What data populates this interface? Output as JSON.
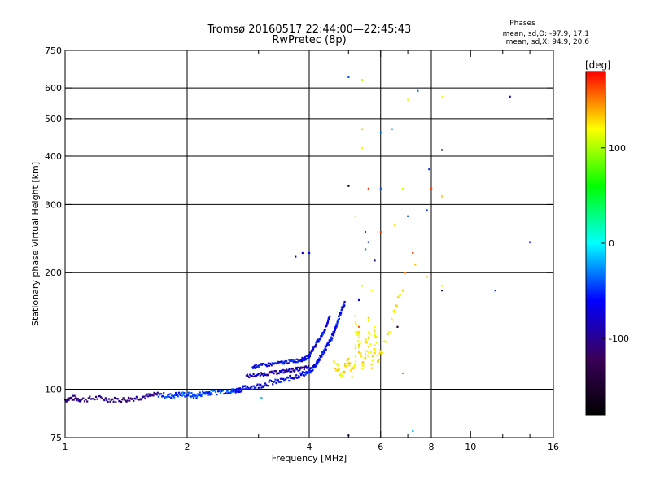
{
  "chart_data": {
    "type": "scatter",
    "title": "Tromsø 20160517 22:44:00—22:45:43",
    "subtitle": "RwPretec (8p)",
    "xlabel": "Frequency [MHz]",
    "ylabel": "Stationary phase Virtual Height [km]",
    "xscale": "log",
    "yscale": "log",
    "xlim": [
      1,
      16
    ],
    "ylim": [
      75,
      750
    ],
    "x_ticks": [
      1,
      2,
      4,
      6,
      8,
      10,
      16
    ],
    "y_ticks": [
      75,
      100,
      200,
      300,
      400,
      500,
      600,
      750
    ],
    "x_gridlines": [
      2,
      4,
      6,
      8
    ],
    "y_gridlines": [
      100,
      200,
      300,
      400,
      500,
      600
    ],
    "phase_stats": {
      "heading": "Phases",
      "line_o": "mean, sd,O: -97.9, 17.1",
      "line_x": "mean, sd,X:  94.9, 20.6"
    },
    "colorbar": {
      "label": "[deg]",
      "range": [
        -180,
        180
      ],
      "ticks": [
        100,
        0,
        -100
      ],
      "colors": [
        "#000000",
        "#3a005a",
        "#0000ff",
        "#00ffff",
        "#00ff00",
        "#ffff00",
        "#ff0000"
      ]
    },
    "o_trace": [
      [
        1.0,
        94
      ],
      [
        1.05,
        95
      ],
      [
        1.1,
        94
      ],
      [
        1.2,
        95
      ],
      [
        1.3,
        94
      ],
      [
        1.4,
        94
      ],
      [
        1.5,
        95
      ],
      [
        1.6,
        96
      ],
      [
        1.7,
        97
      ],
      [
        1.8,
        96
      ],
      [
        1.9,
        97
      ],
      [
        2.0,
        97
      ],
      [
        2.1,
        96
      ],
      [
        2.2,
        98
      ],
      [
        2.3,
        98
      ],
      [
        2.5,
        99
      ],
      [
        2.6,
        99
      ],
      [
        2.7,
        100
      ],
      [
        2.8,
        101
      ],
      [
        3.0,
        102
      ],
      [
        3.2,
        104
      ],
      [
        3.4,
        105
      ],
      [
        3.6,
        107
      ],
      [
        3.8,
        109
      ],
      [
        4.0,
        111
      ],
      [
        4.1,
        114
      ],
      [
        4.2,
        118
      ],
      [
        4.3,
        123
      ],
      [
        4.4,
        128
      ],
      [
        4.5,
        133
      ],
      [
        4.6,
        140
      ],
      [
        4.7,
        150
      ],
      [
        4.8,
        160
      ],
      [
        4.9,
        168
      ]
    ],
    "x_trace": [
      [
        2.9,
        114
      ],
      [
        3.0,
        115
      ],
      [
        3.2,
        116
      ],
      [
        3.4,
        117
      ],
      [
        3.6,
        118
      ],
      [
        3.8,
        119
      ],
      [
        3.9,
        120
      ],
      [
        4.0,
        122
      ],
      [
        4.1,
        128
      ],
      [
        4.2,
        133
      ],
      [
        4.3,
        138
      ],
      [
        4.4,
        145
      ],
      [
        4.5,
        155
      ]
    ],
    "upper_trace": [
      [
        2.8,
        108
      ],
      [
        3.0,
        109
      ],
      [
        3.2,
        110
      ],
      [
        3.4,
        111
      ],
      [
        3.6,
        112
      ],
      [
        3.8,
        113
      ],
      [
        4.0,
        114
      ]
    ],
    "yellow_cluster": [
      [
        4.6,
        118
      ],
      [
        4.7,
        112
      ],
      [
        4.8,
        108
      ],
      [
        4.9,
        115
      ],
      [
        5.0,
        120
      ],
      [
        5.1,
        110
      ],
      [
        5.2,
        118
      ],
      [
        5.3,
        125
      ],
      [
        5.4,
        113
      ],
      [
        5.5,
        120
      ],
      [
        5.6,
        122
      ],
      [
        5.7,
        116
      ],
      [
        5.8,
        126
      ],
      [
        5.9,
        118
      ],
      [
        6.0,
        124
      ],
      [
        5.3,
        140
      ],
      [
        5.5,
        135
      ],
      [
        5.8,
        145
      ],
      [
        5.2,
        155
      ],
      [
        5.6,
        150
      ],
      [
        6.3,
        140
      ],
      [
        6.5,
        160
      ],
      [
        6.7,
        175
      ]
    ],
    "scattered_points": [
      [
        5.0,
        640,
        -80
      ],
      [
        5.4,
        630,
        80
      ],
      [
        6.0,
        460,
        -70
      ],
      [
        5.4,
        470,
        120
      ],
      [
        5.4,
        420,
        100
      ],
      [
        6.4,
        470,
        -60
      ],
      [
        7.4,
        590,
        -80
      ],
      [
        7.0,
        560,
        90
      ],
      [
        8.5,
        570,
        100
      ],
      [
        12.5,
        570,
        -100
      ],
      [
        8.5,
        415,
        -160
      ],
      [
        7.9,
        370,
        -90
      ],
      [
        5.0,
        335,
        -170
      ],
      [
        5.6,
        330,
        160
      ],
      [
        6.0,
        330,
        -80
      ],
      [
        6.8,
        330,
        90
      ],
      [
        8.0,
        330,
        160
      ],
      [
        8.5,
        315,
        120
      ],
      [
        5.2,
        280,
        80
      ],
      [
        7.0,
        280,
        -80
      ],
      [
        6.5,
        265,
        110
      ],
      [
        7.8,
        290,
        -90
      ],
      [
        5.5,
        255,
        -80
      ],
      [
        6.0,
        255,
        160
      ],
      [
        14.0,
        240,
        -100
      ],
      [
        3.7,
        220,
        -110
      ],
      [
        3.85,
        225,
        -110
      ],
      [
        4.0,
        225,
        -100
      ],
      [
        5.6,
        240,
        -90
      ],
      [
        5.5,
        230,
        -70
      ],
      [
        5.8,
        215,
        -130
      ],
      [
        7.2,
        225,
        160
      ],
      [
        7.3,
        210,
        120
      ],
      [
        6.9,
        200,
        140
      ],
      [
        7.8,
        195,
        120
      ],
      [
        8.5,
        185,
        100
      ],
      [
        8.5,
        180,
        -160
      ],
      [
        11.5,
        180,
        -90
      ],
      [
        5.4,
        185,
        90
      ],
      [
        5.7,
        180,
        100
      ],
      [
        6.8,
        180,
        120
      ],
      [
        6.6,
        145,
        -160
      ],
      [
        7.4,
        590,
        -70
      ],
      [
        5.3,
        170,
        -100
      ],
      [
        7.2,
        78,
        -60
      ],
      [
        5.0,
        76,
        -110
      ],
      [
        3.05,
        95,
        -60
      ],
      [
        5.3,
        145,
        150
      ],
      [
        6.8,
        110,
        140
      ]
    ]
  }
}
